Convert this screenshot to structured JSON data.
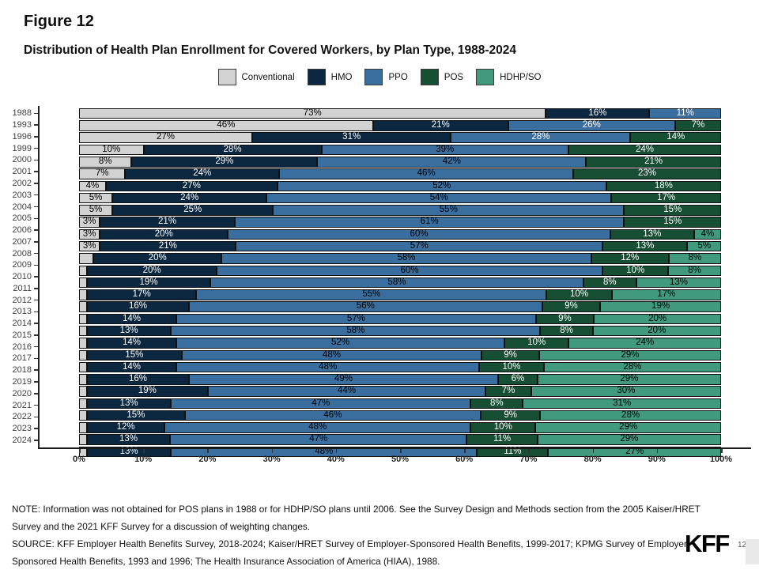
{
  "header": {
    "figure_label": "Figure 12",
    "title": "Distribution of Health Plan Enrollment for Covered Workers, by Plan Type, 1988-2024"
  },
  "chart_data": {
    "type": "bar",
    "subtype": "horizontal-stacked-percent",
    "title": "Distribution of Health Plan Enrollment for Covered Workers, by Plan Type, 1988-2024",
    "legend_position": "top",
    "x_axis": {
      "min": 0,
      "max": 100,
      "tick_step": 10,
      "tick_labels": [
        "0%",
        "10%",
        "20%",
        "30%",
        "40%",
        "50%",
        "60%",
        "70%",
        "80%",
        "90%",
        "100%"
      ]
    },
    "plan_types": [
      "Conventional",
      "HMO",
      "PPO",
      "POS",
      "HDHP/SO"
    ],
    "colors": [
      "#d2d2d2",
      "#0c2740",
      "#3a6e9f",
      "#174f35",
      "#419a7d"
    ],
    "series_label_colors": [
      "#000000",
      "#ffffff",
      "#000000",
      "#ffffff",
      "#000000"
    ],
    "ppo_white_years": [
      "1988",
      "1993",
      "1996"
    ],
    "label_min": 3,
    "rows": [
      {
        "year": "1988",
        "values": [
          73,
          16,
          11,
          null,
          null
        ]
      },
      {
        "year": "1993",
        "values": [
          46,
          21,
          26,
          7,
          null
        ]
      },
      {
        "year": "1996",
        "values": [
          27,
          31,
          28,
          14,
          null
        ]
      },
      {
        "year": "1999",
        "values": [
          10,
          28,
          39,
          24,
          null
        ]
      },
      {
        "year": "2000",
        "values": [
          8,
          29,
          42,
          21,
          null
        ]
      },
      {
        "year": "2001",
        "values": [
          7,
          24,
          46,
          23,
          null
        ]
      },
      {
        "year": "2002",
        "values": [
          4,
          27,
          52,
          18,
          null
        ]
      },
      {
        "year": "2003",
        "values": [
          5,
          24,
          54,
          17,
          null
        ]
      },
      {
        "year": "2004",
        "values": [
          5,
          25,
          55,
          15,
          null
        ]
      },
      {
        "year": "2005",
        "values": [
          3,
          21,
          61,
          15,
          null
        ]
      },
      {
        "year": "2006",
        "values": [
          3,
          20,
          60,
          13,
          4
        ]
      },
      {
        "year": "2007",
        "values": [
          3,
          21,
          57,
          13,
          5
        ]
      },
      {
        "year": "2008",
        "values": [
          2,
          20,
          58,
          12,
          8
        ]
      },
      {
        "year": "2009",
        "values": [
          1,
          20,
          60,
          10,
          8
        ]
      },
      {
        "year": "2010",
        "values": [
          1,
          19,
          58,
          8,
          13
        ]
      },
      {
        "year": "2011",
        "values": [
          1,
          17,
          55,
          10,
          17
        ]
      },
      {
        "year": "2012",
        "values": [
          1,
          16,
          56,
          9,
          19
        ]
      },
      {
        "year": "2013",
        "values": [
          1,
          14,
          57,
          9,
          20
        ]
      },
      {
        "year": "2014",
        "values": [
          1,
          13,
          58,
          8,
          20
        ]
      },
      {
        "year": "2015",
        "values": [
          1,
          14,
          52,
          10,
          24
        ]
      },
      {
        "year": "2016",
        "values": [
          1,
          15,
          48,
          9,
          29
        ]
      },
      {
        "year": "2017",
        "values": [
          1,
          14,
          48,
          10,
          28
        ]
      },
      {
        "year": "2018",
        "values": [
          1,
          16,
          49,
          6,
          29
        ]
      },
      {
        "year": "2019",
        "values": [
          1,
          19,
          44,
          7,
          30
        ]
      },
      {
        "year": "2020",
        "values": [
          1,
          13,
          47,
          8,
          31
        ]
      },
      {
        "year": "2021",
        "values": [
          1,
          15,
          46,
          9,
          28
        ]
      },
      {
        "year": "2022",
        "values": [
          1,
          12,
          48,
          10,
          29
        ]
      },
      {
        "year": "2023",
        "values": [
          1,
          13,
          47,
          11,
          29
        ]
      },
      {
        "year": "2024",
        "values": [
          1,
          13,
          48,
          11,
          27
        ]
      }
    ]
  },
  "footer": {
    "note": "NOTE: Information was not obtained for POS plans in 1988 or for HDHP/SO plans until 2006. See the Survey Design and Methods section from the 2005 Kaiser/HRET Survey and the 2021 KFF Survey for a discussion of weighting changes.",
    "source": "SOURCE: KFF Employer Health Benefits Survey, 2018-2024; Kaiser/HRET Survey of Employer-Sponsored Health Benefits, 1999-2017; KPMG Survey of Employer-Sponsored Health Benefits, 1993 and 1996; The Health Insurance Association of America (HIAA), 1988.",
    "logo": "KFF",
    "page_number": "12"
  }
}
